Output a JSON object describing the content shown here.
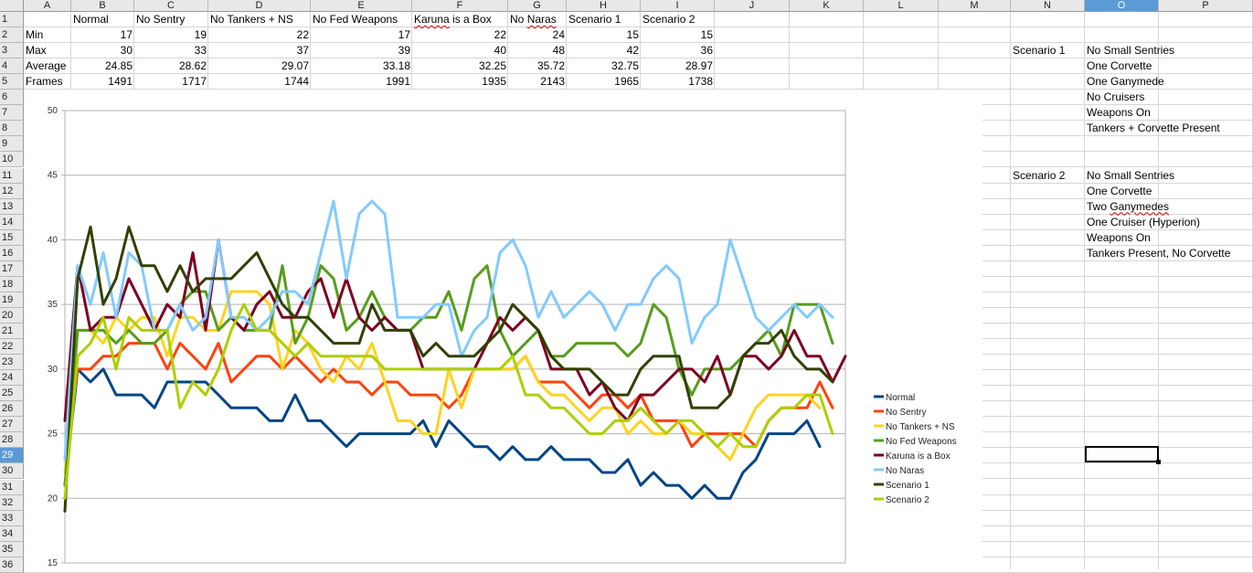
{
  "columns": [
    "A",
    "B",
    "C",
    "D",
    "E",
    "F",
    "G",
    "H",
    "I",
    "J",
    "K",
    "L",
    "M",
    "N",
    "O",
    "P"
  ],
  "rows": [
    "1",
    "2",
    "3",
    "4",
    "5",
    "6",
    "7",
    "8",
    "9",
    "10",
    "11",
    "12",
    "13",
    "14",
    "15",
    "16",
    "17",
    "18",
    "19",
    "20",
    "21",
    "22",
    "23",
    "24",
    "25",
    "26",
    "27",
    "28",
    "29",
    "30",
    "31",
    "32",
    "33",
    "34",
    "35",
    "36"
  ],
  "selected": {
    "column": "O",
    "row": "29"
  },
  "table": {
    "headers": [
      "Normal",
      "No Sentry",
      "No Tankers + NS",
      "No Fed Weapons",
      "Karuna is a Box",
      "No Naras",
      "Scenario 1",
      "Scenario 2"
    ],
    "row_labels": [
      "Min",
      "Max",
      "Average",
      "Frames"
    ],
    "values": [
      [
        "17",
        "19",
        "22",
        "17",
        "22",
        "24",
        "15",
        "15"
      ],
      [
        "30",
        "33",
        "37",
        "39",
        "40",
        "48",
        "42",
        "36"
      ],
      [
        "24.85",
        "28.62",
        "29.07",
        "33.18",
        "32.25",
        "35.72",
        "32.75",
        "28.97"
      ],
      [
        "1491",
        "1717",
        "1744",
        "1991",
        "1935",
        "2143",
        "1965",
        "1738"
      ]
    ]
  },
  "notes": {
    "scenario1_label": "Scenario 1",
    "scenario1_items": [
      "No Small Sentries",
      "One Corvette",
      "One Ganymede",
      "No Cruisers",
      "Weapons On",
      "Tankers + Corvette Present"
    ],
    "scenario2_label": "Scenario 2",
    "scenario2_items": [
      "No Small Sentries",
      "One Corvette",
      "Two Ganymedes",
      "One Cruiser (Hyperion)",
      "Weapons On",
      "Tankers Present, No Corvette"
    ]
  },
  "chart_data": {
    "type": "line",
    "y_ticks": [
      15,
      20,
      25,
      30,
      35,
      40,
      45,
      50
    ],
    "ylim": [
      15,
      50
    ],
    "grid": "horizontal",
    "legend_position": "right",
    "series": [
      {
        "name": "Normal",
        "color": "#004586",
        "values": [
          21,
          30,
          29,
          30,
          28,
          28,
          28,
          27,
          29,
          29,
          29,
          29,
          28,
          27,
          27,
          27,
          26,
          26,
          28,
          26,
          26,
          25,
          24,
          25,
          25,
          25,
          25,
          25,
          26,
          24,
          26,
          25,
          24,
          24,
          23,
          24,
          23,
          23,
          24,
          23,
          23,
          23,
          22,
          22,
          23,
          21,
          22,
          21,
          21,
          20,
          21,
          20,
          20,
          22,
          23,
          25,
          25,
          25,
          26,
          24
        ]
      },
      {
        "name": "No Sentry",
        "color": "#ff420e",
        "values": [
          23,
          30,
          30,
          31,
          31,
          32,
          32,
          32,
          30,
          32,
          31,
          30,
          32,
          29,
          30,
          31,
          31,
          30,
          31,
          30,
          29,
          30,
          29,
          29,
          28,
          29,
          29,
          28,
          28,
          28,
          27,
          28,
          30,
          30,
          30,
          30,
          31,
          29,
          29,
          29,
          28,
          27,
          28,
          28,
          27,
          28,
          26,
          26,
          26,
          24,
          25,
          25,
          25,
          25,
          24,
          26,
          27,
          27,
          27,
          29,
          27
        ]
      },
      {
        "name": "No Tankers + NS",
        "color": "#ffd320",
        "values": [
          22,
          33,
          33,
          32,
          34,
          33,
          34,
          34,
          31,
          34,
          34,
          33,
          33,
          36,
          36,
          36,
          35,
          30,
          33,
          32,
          30,
          29,
          31,
          30,
          32,
          29,
          26,
          26,
          25,
          25,
          30,
          27,
          30,
          30,
          30,
          30,
          31,
          29,
          28,
          28,
          27,
          26,
          27,
          27,
          25,
          26,
          25,
          25,
          26,
          25,
          25,
          24,
          23,
          25,
          27,
          28,
          28,
          28,
          28,
          27
        ]
      },
      {
        "name": "No Fed Weapons",
        "color": "#579d1c",
        "values": [
          21,
          33,
          33,
          33,
          32,
          33,
          32,
          32,
          33,
          35,
          36,
          36,
          33,
          34,
          33,
          33,
          33,
          38,
          32,
          34,
          38,
          37,
          33,
          34,
          36,
          34,
          33,
          33,
          34,
          34,
          36,
          33,
          37,
          38,
          33,
          31,
          32,
          33,
          31,
          31,
          32,
          32,
          32,
          32,
          31,
          32,
          35,
          34,
          30,
          28,
          30,
          30,
          30,
          31,
          32,
          33,
          31,
          35,
          35,
          35,
          32
        ]
      },
      {
        "name": "Karuna is a Box",
        "color": "#7e0021",
        "values": [
          26,
          38,
          33,
          34,
          34,
          37,
          35,
          33,
          35,
          34,
          39,
          33,
          40,
          34,
          33,
          35,
          36,
          34,
          34,
          36,
          37,
          34,
          37,
          34,
          33,
          34,
          33,
          33,
          30,
          30,
          30,
          30,
          30,
          32,
          34,
          33,
          34,
          33,
          30,
          30,
          30,
          28,
          29,
          27,
          26,
          28,
          28,
          29,
          30,
          30,
          29,
          31,
          28,
          31,
          31,
          30,
          31,
          33,
          31,
          31,
          29,
          31
        ]
      },
      {
        "name": "No Naras",
        "color": "#83caff",
        "values": [
          23,
          38,
          35,
          39,
          34,
          39,
          38,
          33,
          33,
          35,
          33,
          34,
          40,
          34,
          34,
          33,
          34,
          36,
          36,
          35,
          39,
          43,
          37,
          42,
          43,
          42,
          34,
          34,
          34,
          35,
          35,
          31,
          33,
          34,
          39,
          40,
          38,
          34,
          36,
          34,
          35,
          36,
          35,
          33,
          35,
          35,
          37,
          38,
          37,
          32,
          34,
          35,
          40,
          37,
          34,
          33,
          34,
          35,
          34,
          35,
          34
        ]
      },
      {
        "name": "Scenario 1",
        "color": "#314004",
        "values": [
          19,
          37,
          41,
          35,
          37,
          41,
          38,
          38,
          36,
          38,
          36,
          37,
          37,
          37,
          38,
          39,
          37,
          35,
          34,
          34,
          33,
          32,
          32,
          32,
          35,
          33,
          33,
          33,
          31,
          32,
          31,
          31,
          31,
          32,
          33,
          35,
          34,
          33,
          31,
          30,
          30,
          30,
          29,
          28,
          28,
          30,
          31,
          31,
          31,
          27,
          27,
          27,
          28,
          31,
          32,
          32,
          33,
          31,
          30,
          30,
          29
        ]
      },
      {
        "name": "Scenario 2",
        "color": "#aecf00",
        "values": [
          20,
          31,
          32,
          34,
          30,
          34,
          33,
          33,
          33,
          27,
          29,
          28,
          30,
          33,
          35,
          33,
          33,
          32,
          31,
          32,
          31,
          31,
          31,
          31,
          31,
          30,
          30,
          30,
          30,
          30,
          30,
          30,
          30,
          30,
          30,
          31,
          28,
          28,
          27,
          27,
          26,
          25,
          25,
          26,
          26,
          27,
          26,
          25,
          26,
          26,
          25,
          24,
          25,
          24,
          24,
          26,
          27,
          27,
          28,
          28,
          25
        ]
      }
    ]
  }
}
